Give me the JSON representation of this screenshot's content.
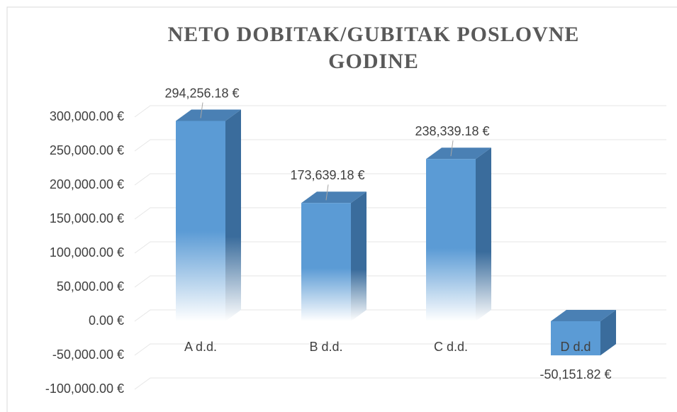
{
  "chart_data": {
    "type": "bar3d",
    "title": "NETO DOBITAK/GUBITAK POSLOVNE GODINE",
    "categories": [
      "A d.d.",
      "B d.d.",
      "C d.d.",
      "D d.d"
    ],
    "values": [
      294256.18,
      173639.18,
      238339.18,
      -50151.82
    ],
    "value_labels": [
      "294,256.18 €",
      "173,639.18 €",
      "238,339.18 €",
      "-50,151.82 €"
    ],
    "color": "#5b9bd5",
    "ylim": [
      -100000,
      300000
    ],
    "yticks": [
      {
        "value": 300000,
        "label": "300,000.00 €"
      },
      {
        "value": 250000,
        "label": "250,000.00 €"
      },
      {
        "value": 200000,
        "label": "200,000.00 €"
      },
      {
        "value": 150000,
        "label": "150,000.00 €"
      },
      {
        "value": 100000,
        "label": "100,000.00 €"
      },
      {
        "value": 50000,
        "label": "50,000.00 €"
      },
      {
        "value": 0,
        "label": "0.00 €"
      },
      {
        "value": -50000,
        "label": "-50,000.00 €"
      },
      {
        "value": -100000,
        "label": "-100,000.00 €"
      }
    ],
    "grid": true
  }
}
